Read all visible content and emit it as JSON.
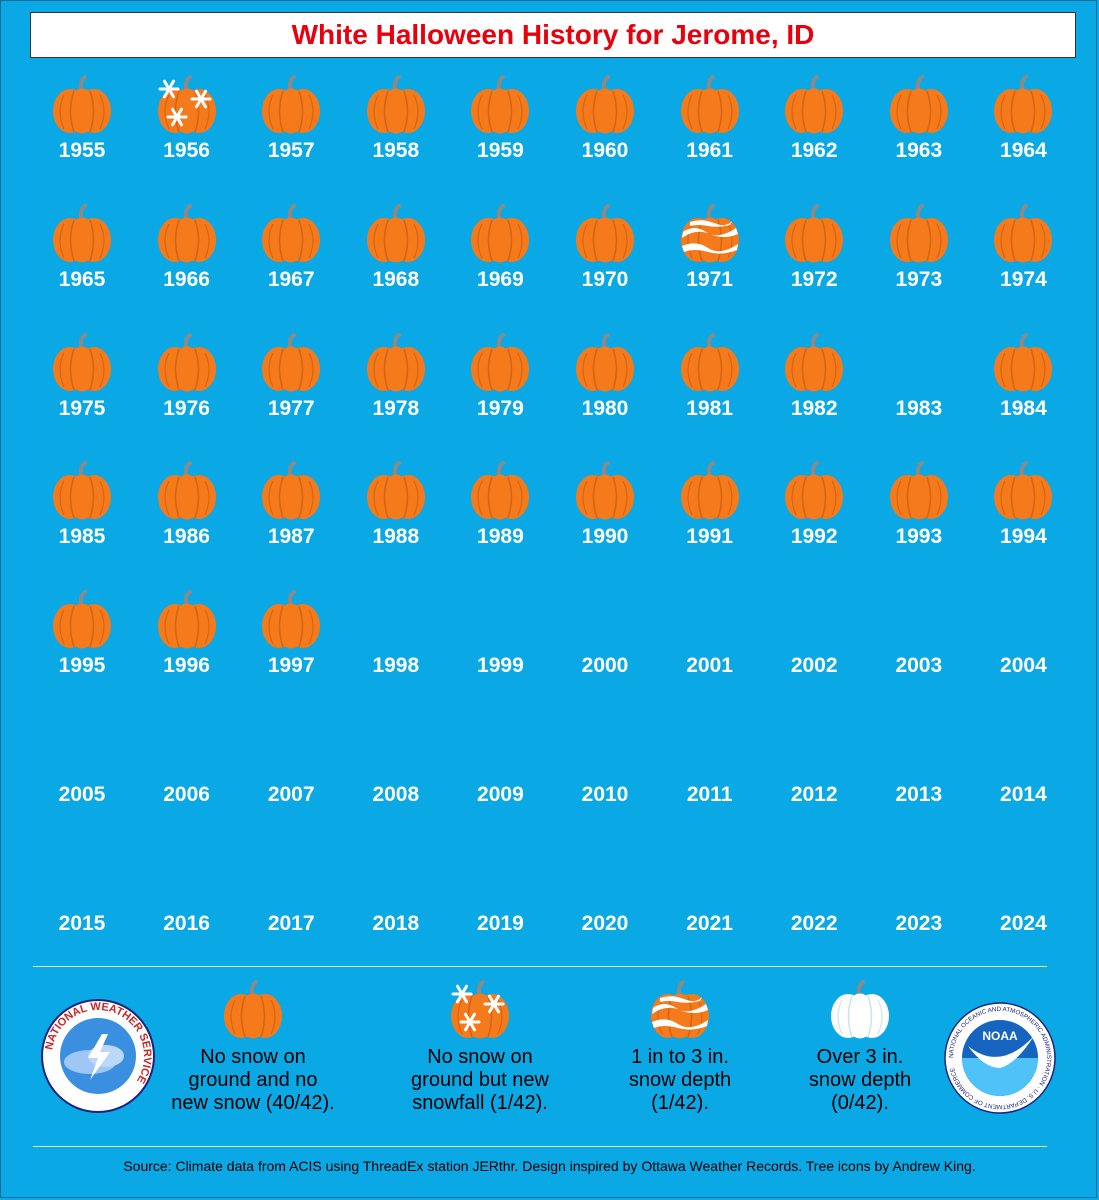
{
  "title": "White Halloween History for Jerome, ID",
  "colors": {
    "background": "#0aa9e6",
    "title_text": "#e8000d",
    "pumpkin": "#f47a1c",
    "snow": "#ffffff"
  },
  "years": [
    {
      "year": "1955",
      "status": "none"
    },
    {
      "year": "1956",
      "status": "snowfall"
    },
    {
      "year": "1957",
      "status": "none"
    },
    {
      "year": "1958",
      "status": "none"
    },
    {
      "year": "1959",
      "status": "none"
    },
    {
      "year": "1960",
      "status": "none"
    },
    {
      "year": "1961",
      "status": "none"
    },
    {
      "year": "1962",
      "status": "none"
    },
    {
      "year": "1963",
      "status": "none"
    },
    {
      "year": "1964",
      "status": "none"
    },
    {
      "year": "1965",
      "status": "none"
    },
    {
      "year": "1966",
      "status": "none"
    },
    {
      "year": "1967",
      "status": "none"
    },
    {
      "year": "1968",
      "status": "none"
    },
    {
      "year": "1969",
      "status": "none"
    },
    {
      "year": "1970",
      "status": "none"
    },
    {
      "year": "1971",
      "status": "depth1to3"
    },
    {
      "year": "1972",
      "status": "none"
    },
    {
      "year": "1973",
      "status": "none"
    },
    {
      "year": "1974",
      "status": "none"
    },
    {
      "year": "1975",
      "status": "none"
    },
    {
      "year": "1976",
      "status": "none"
    },
    {
      "year": "1977",
      "status": "none"
    },
    {
      "year": "1978",
      "status": "none"
    },
    {
      "year": "1979",
      "status": "none"
    },
    {
      "year": "1980",
      "status": "none"
    },
    {
      "year": "1981",
      "status": "none"
    },
    {
      "year": "1982",
      "status": "none"
    },
    {
      "year": "1983",
      "status": "missing"
    },
    {
      "year": "1984",
      "status": "none"
    },
    {
      "year": "1985",
      "status": "none"
    },
    {
      "year": "1986",
      "status": "none"
    },
    {
      "year": "1987",
      "status": "none"
    },
    {
      "year": "1988",
      "status": "none"
    },
    {
      "year": "1989",
      "status": "none"
    },
    {
      "year": "1990",
      "status": "none"
    },
    {
      "year": "1991",
      "status": "none"
    },
    {
      "year": "1992",
      "status": "none"
    },
    {
      "year": "1993",
      "status": "none"
    },
    {
      "year": "1994",
      "status": "none"
    },
    {
      "year": "1995",
      "status": "none"
    },
    {
      "year": "1996",
      "status": "none"
    },
    {
      "year": "1997",
      "status": "none"
    },
    {
      "year": "1998",
      "status": "missing"
    },
    {
      "year": "1999",
      "status": "missing"
    },
    {
      "year": "2000",
      "status": "missing"
    },
    {
      "year": "2001",
      "status": "missing"
    },
    {
      "year": "2002",
      "status": "missing"
    },
    {
      "year": "2003",
      "status": "missing"
    },
    {
      "year": "2004",
      "status": "missing"
    },
    {
      "year": "2005",
      "status": "missing"
    },
    {
      "year": "2006",
      "status": "missing"
    },
    {
      "year": "2007",
      "status": "missing"
    },
    {
      "year": "2008",
      "status": "missing"
    },
    {
      "year": "2009",
      "status": "missing"
    },
    {
      "year": "2010",
      "status": "missing"
    },
    {
      "year": "2011",
      "status": "missing"
    },
    {
      "year": "2012",
      "status": "missing"
    },
    {
      "year": "2013",
      "status": "missing"
    },
    {
      "year": "2014",
      "status": "missing"
    },
    {
      "year": "2015",
      "status": "missing"
    },
    {
      "year": "2016",
      "status": "missing"
    },
    {
      "year": "2017",
      "status": "missing"
    },
    {
      "year": "2018",
      "status": "missing"
    },
    {
      "year": "2019",
      "status": "missing"
    },
    {
      "year": "2020",
      "status": "missing"
    },
    {
      "year": "2021",
      "status": "missing"
    },
    {
      "year": "2022",
      "status": "missing"
    },
    {
      "year": "2023",
      "status": "missing"
    },
    {
      "year": "2024",
      "status": "missing"
    }
  ],
  "legend": [
    {
      "status": "none",
      "lines": [
        "No snow on",
        "ground and no",
        "new snow (40/42)."
      ]
    },
    {
      "status": "snowfall",
      "lines": [
        "No snow on",
        "ground but new",
        "snowfall (1/42)."
      ]
    },
    {
      "status": "depth1to3",
      "lines": [
        "1 in to 3 in.",
        "snow depth",
        "(1/42)."
      ]
    },
    {
      "status": "depth3plus",
      "lines": [
        "Over 3 in.",
        "snow depth",
        "(0/42)."
      ]
    }
  ],
  "logos": {
    "nws": "NATIONAL WEATHER SERVICE",
    "noaa": "NOAA",
    "noaa_ring": "NATIONAL OCEANIC AND ATMOSPHERIC ADMINISTRATION · U.S. DEPARTMENT OF COMMERCE"
  },
  "source": "Source: Climate data from ACIS using ThreadEx station JERthr. Design inspired by Ottawa Weather Records. Tree icons by Andrew King."
}
